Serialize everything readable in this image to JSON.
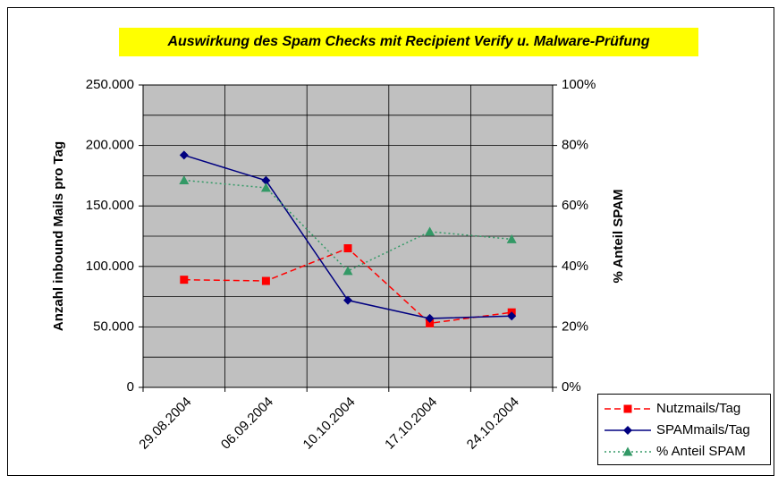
{
  "chart_data": {
    "type": "line",
    "title": "Auswirkung des Spam Checks mit Recipient Verify u. Malware-Prüfung",
    "y_label": "Anzahl inbound Mails pro Tag",
    "y2_label": "% Anteil SPAM",
    "categories": [
      "29.08.2004",
      "06.09.2004",
      "10.10.2004",
      "17.10.2004",
      "24.10.2004"
    ],
    "series": [
      {
        "name": "Nutzmails/Tag",
        "color": "#ff0000",
        "line_style": "dashed",
        "marker": "square",
        "values": [
          89000,
          88000,
          115000,
          53000,
          62000
        ]
      },
      {
        "name": "SPAMmails/Tag",
        "color": "#000080",
        "line_style": "solid",
        "marker": "diamond",
        "values": [
          192000,
          171000,
          72000,
          57000,
          59000
        ]
      },
      {
        "name": "% Anteil SPAM",
        "color": "#339966",
        "line_style": "dotted",
        "marker": "triangle",
        "axis": "y2",
        "values": [
          68.5,
          66,
          38.5,
          51.5,
          49
        ]
      }
    ],
    "ylim": [
      0,
      250000
    ],
    "yticks": [
      {
        "value": 0,
        "label": "0"
      },
      {
        "value": 50000,
        "label": "50.000"
      },
      {
        "value": 100000,
        "label": "100.000"
      },
      {
        "value": 150000,
        "label": "150.000"
      },
      {
        "value": 200000,
        "label": "200.000"
      },
      {
        "value": 250000,
        "label": "250.000"
      }
    ],
    "minor_yticks": [
      25000,
      75000,
      125000,
      175000,
      225000
    ],
    "y2lim": [
      0,
      100
    ],
    "y2ticks": [
      {
        "value": 0,
        "label": "0%"
      },
      {
        "value": 20,
        "label": "20%"
      },
      {
        "value": 40,
        "label": "40%"
      },
      {
        "value": 60,
        "label": "60%"
      },
      {
        "value": 80,
        "label": "80%"
      },
      {
        "value": 100,
        "label": "100%"
      }
    ],
    "grid": true,
    "plot_background": "#c0c0c0",
    "title_background": "#ffff00",
    "legend": "bottom-right"
  }
}
